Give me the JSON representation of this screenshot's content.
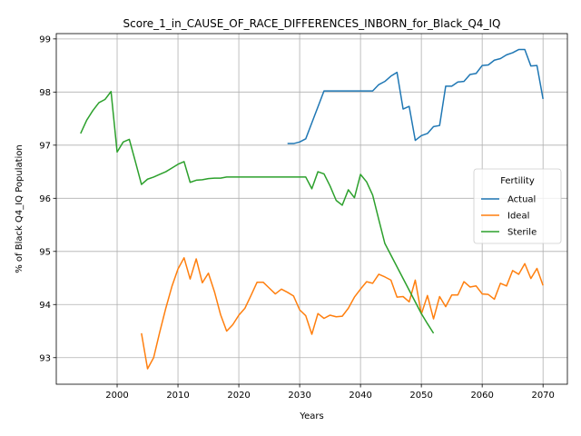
{
  "chart_data": {
    "type": "line",
    "title": "Score_1_in_CAUSE_OF_RACE_DIFFERENCES_INBORN_for_Black_Q4_IQ",
    "xlabel": "Years",
    "ylabel": "% of Black Q4_IQ Population",
    "xlim": [
      1990,
      2074
    ],
    "ylim": [
      92.5,
      99.1
    ],
    "xticks": [
      2000,
      2010,
      2020,
      2030,
      2040,
      2050,
      2060,
      2070
    ],
    "yticks": [
      93,
      94,
      95,
      96,
      97,
      98,
      99
    ],
    "grid": true,
    "legend": {
      "title": "Fertility",
      "position": "center-right"
    },
    "series": [
      {
        "name": "Actual",
        "color": "#1f77b4",
        "x": [
          2028,
          2029,
          2030,
          2031,
          2032,
          2033,
          2034,
          2035,
          2036,
          2037,
          2038,
          2039,
          2040,
          2041,
          2042,
          2043,
          2044,
          2045,
          2046,
          2047,
          2048,
          2049,
          2050,
          2051,
          2052,
          2053,
          2054,
          2055,
          2056,
          2057,
          2058,
          2059,
          2060,
          2061,
          2062,
          2063,
          2064,
          2065,
          2066,
          2067,
          2068,
          2069,
          2070
        ],
        "y": [
          97.03,
          97.03,
          97.06,
          97.12,
          97.42,
          97.72,
          98.02,
          98.02,
          98.02,
          98.02,
          98.02,
          98.02,
          98.02,
          98.02,
          98.02,
          98.14,
          98.2,
          98.3,
          98.37,
          97.68,
          97.73,
          97.09,
          97.18,
          97.22,
          97.35,
          97.37,
          98.11,
          98.11,
          98.19,
          98.2,
          98.33,
          98.35,
          98.5,
          98.51,
          98.6,
          98.63,
          98.7,
          98.74,
          98.8,
          98.8,
          98.49,
          98.5,
          97.87
        ]
      },
      {
        "name": "Ideal",
        "color": "#ff7f0e",
        "x": [
          2004,
          2005,
          2006,
          2007,
          2008,
          2009,
          2010,
          2011,
          2012,
          2013,
          2014,
          2015,
          2016,
          2017,
          2018,
          2019,
          2020,
          2021,
          2022,
          2023,
          2024,
          2025,
          2026,
          2027,
          2028,
          2029,
          2030,
          2031,
          2032,
          2033,
          2034,
          2035,
          2036,
          2037,
          2038,
          2039,
          2040,
          2041,
          2042,
          2043,
          2044,
          2045,
          2046,
          2047,
          2048,
          2049,
          2050,
          2051,
          2052,
          2053,
          2054,
          2055,
          2056,
          2057,
          2058,
          2059,
          2060,
          2061,
          2062,
          2063,
          2064,
          2065,
          2066,
          2067,
          2068,
          2069,
          2070
        ],
        "y": [
          93.46,
          92.79,
          93.0,
          93.48,
          93.93,
          94.34,
          94.67,
          94.88,
          94.48,
          94.86,
          94.41,
          94.59,
          94.24,
          93.81,
          93.5,
          93.62,
          93.8,
          93.93,
          94.17,
          94.42,
          94.42,
          94.31,
          94.2,
          94.29,
          94.23,
          94.16,
          93.9,
          93.79,
          93.44,
          93.83,
          93.74,
          93.8,
          93.77,
          93.78,
          93.93,
          94.14,
          94.29,
          94.43,
          94.4,
          94.57,
          94.52,
          94.46,
          94.14,
          94.15,
          94.05,
          94.46,
          93.82,
          94.17,
          93.73,
          94.15,
          93.96,
          94.18,
          94.18,
          94.43,
          94.33,
          94.35,
          94.2,
          94.19,
          94.1,
          94.4,
          94.35,
          94.64,
          94.57,
          94.77,
          94.49,
          94.68,
          94.36
        ]
      },
      {
        "name": "Sterile",
        "color": "#2ca02c",
        "x": [
          1994,
          1995,
          1996,
          1997,
          1998,
          1999,
          2000,
          2001,
          2002,
          2003,
          2004,
          2005,
          2006,
          2007,
          2008,
          2009,
          2010,
          2011,
          2012,
          2013,
          2014,
          2015,
          2016,
          2017,
          2018,
          2019,
          2020,
          2021,
          2022,
          2023,
          2024,
          2025,
          2026,
          2027,
          2028,
          2029,
          2030,
          2031,
          2032,
          2033,
          2034,
          2035,
          2036,
          2037,
          2038,
          2039,
          2040,
          2041,
          2042,
          2043,
          2044,
          2045,
          2046,
          2047,
          2048,
          2049,
          2050,
          2051,
          2052
        ],
        "y": [
          97.22,
          97.47,
          97.65,
          97.8,
          97.86,
          98.01,
          96.87,
          97.06,
          97.11,
          96.69,
          96.26,
          96.36,
          96.4,
          96.45,
          96.5,
          96.57,
          96.64,
          96.69,
          96.3,
          96.34,
          96.35,
          96.37,
          96.38,
          96.38,
          96.4,
          96.4,
          96.4,
          96.4,
          96.4,
          96.4,
          96.4,
          96.4,
          96.4,
          96.4,
          96.4,
          96.4,
          96.4,
          96.4,
          96.18,
          96.5,
          96.46,
          96.23,
          95.96,
          95.87,
          96.16,
          96.01,
          96.45,
          96.31,
          96.06,
          95.6,
          95.15,
          94.93,
          94.71,
          94.49,
          94.27,
          94.05,
          93.83,
          93.64,
          93.46
        ]
      }
    ]
  }
}
